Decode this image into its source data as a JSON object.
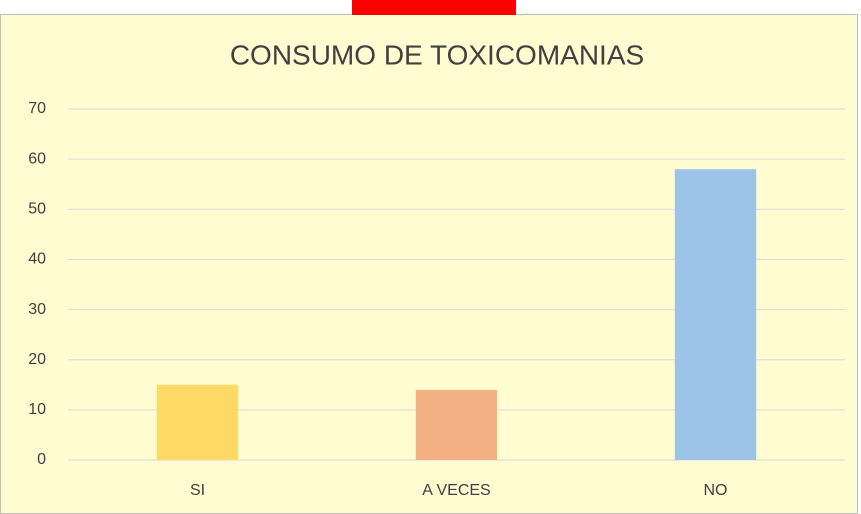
{
  "chart_data": {
    "type": "bar",
    "title": "CONSUMO DE TOXICOMANIAS",
    "categories": [
      "SI",
      "A VECES",
      "NO"
    ],
    "values": [
      15,
      14,
      58
    ],
    "colors": [
      "#ffd966",
      "#f4b183",
      "#9dc3e6"
    ],
    "ylim": [
      0,
      70
    ],
    "yticks": [
      0,
      10,
      20,
      30,
      40,
      50,
      60,
      70
    ],
    "grid": true
  }
}
